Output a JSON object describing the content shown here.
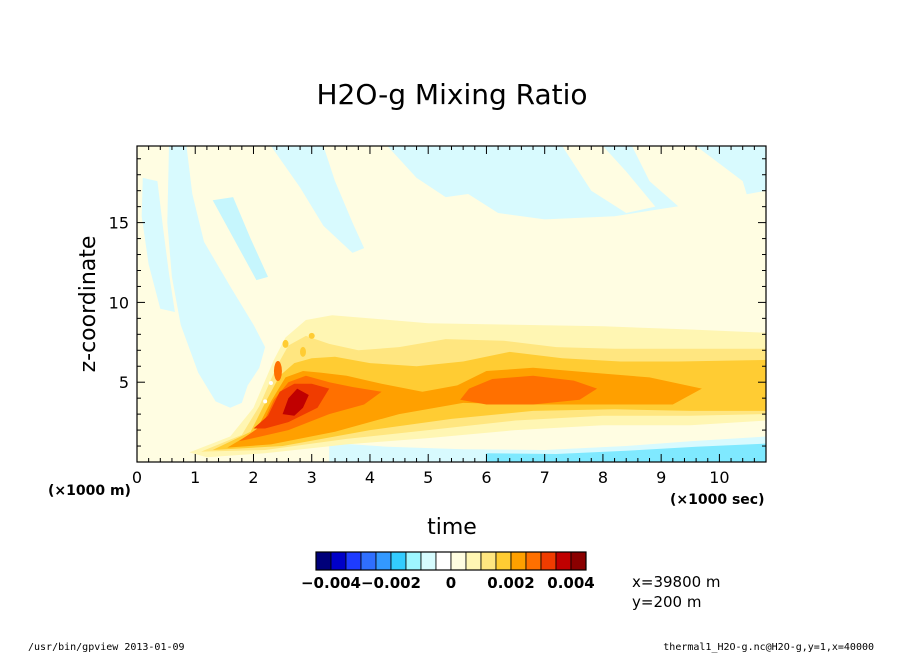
{
  "chart_data": {
    "type": "heatmap",
    "title": "H2O-g Mixing Ratio",
    "xlabel": "time",
    "ylabel": "z-coordinate",
    "x_multiplier": "(×1000 sec)",
    "y_multiplier": "(×1000 m)",
    "xlim": [
      0,
      10.8
    ],
    "ylim": [
      0,
      19.8
    ],
    "x_ticks": [
      "0",
      "1",
      "2",
      "3",
      "4",
      "5",
      "6",
      "7",
      "8",
      "9",
      "10"
    ],
    "x_tick_values": [
      0,
      1,
      2,
      3,
      4,
      5,
      6,
      7,
      8,
      9,
      10
    ],
    "y_ticks": [
      "5",
      "10",
      "15"
    ],
    "y_tick_values": [
      5,
      10,
      15
    ],
    "colorbar": {
      "levels": [
        -0.0045,
        -0.004,
        -0.0035,
        -0.003,
        -0.0025,
        -0.002,
        -0.0015,
        -0.001,
        -0.0005,
        0,
        0.0005,
        0.001,
        0.0015,
        0.002,
        0.0025,
        0.003,
        0.0035,
        0.004,
        0.0045
      ],
      "colors": [
        "#00007a",
        "#0000c8",
        "#1e3cff",
        "#2f6fff",
        "#3399ff",
        "#33ccff",
        "#9ef6ff",
        "#d6fcff",
        "#ffffff",
        "#fffde0",
        "#fff6b3",
        "#ffe680",
        "#ffcc33",
        "#ffa000",
        "#ff7000",
        "#f03c00",
        "#c00000",
        "#8a0000"
      ],
      "labels": [
        "−0.004",
        "−0.002",
        "0",
        "0.002",
        "0.004"
      ],
      "label_values": [
        -0.004,
        -0.002,
        0,
        0.002,
        0.004
      ]
    },
    "fields": {
      "blue_band_1": "#d8fafe",
      "blue_band_2": "#c6f6fd",
      "blue_bottom": "#7fe9ff",
      "background": "#fffde2",
      "yellow_1": "#fff6b3",
      "yellow_2": "#ffe680",
      "orange_1": "#ffcc33",
      "orange_2": "#ffa000",
      "orange_3": "#ff7000",
      "red_1": "#f03c00",
      "red_2": "#c00000"
    },
    "slice_info": [
      "x=39800  m",
      "y=200  m"
    ]
  },
  "footer": {
    "left": "/usr/bin/gpview  2013-01-09",
    "right": "thermal1_H2O-g.nc@H2O-g,y=1,x=40000"
  }
}
